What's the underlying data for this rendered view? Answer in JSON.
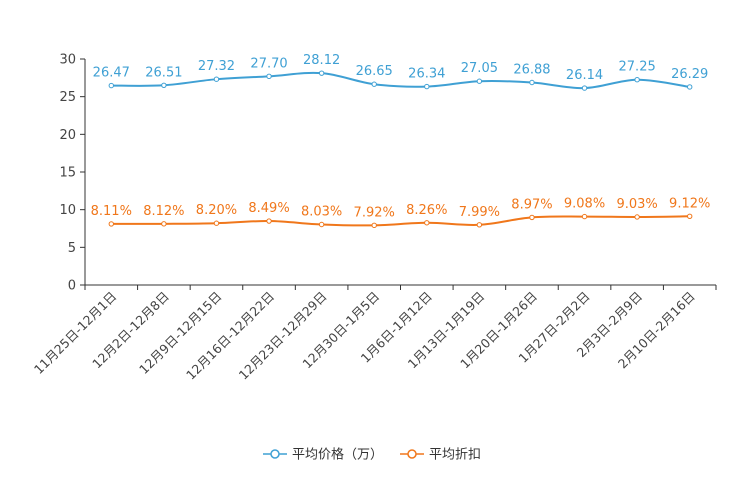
{
  "chart_data": {
    "type": "line",
    "categories": [
      "11月25日-12月1日",
      "12月2日-12月8日",
      "12月9日-12月15日",
      "12月16日-12月22日",
      "12月23日-12月29日",
      "12月30日-1月5日",
      "1月6日-1月12日",
      "1月13日-1月19日",
      "1月20日-1月26日",
      "1月27日-2月2日",
      "2月3日-2月9日",
      "2月10日-2月16日"
    ],
    "series": [
      {
        "name": "平均价格（万）",
        "color": "#3fa0d4",
        "values": [
          26.47,
          26.51,
          27.32,
          27.7,
          28.12,
          26.65,
          26.34,
          27.05,
          26.88,
          26.14,
          27.25,
          26.29
        ],
        "labels": [
          "26.47",
          "26.51",
          "27.32",
          "27.70",
          "28.12",
          "26.65",
          "26.34",
          "27.05",
          "26.88",
          "26.14",
          "27.25",
          "26.29"
        ]
      },
      {
        "name": "平均折扣",
        "color": "#f0771b",
        "values": [
          8.11,
          8.12,
          8.2,
          8.49,
          8.03,
          7.92,
          8.26,
          7.99,
          8.97,
          9.08,
          9.03,
          9.12
        ],
        "labels": [
          "8.11%",
          "8.12%",
          "8.20%",
          "8.49%",
          "8.03%",
          "7.92%",
          "8.26%",
          "7.99%",
          "8.97%",
          "9.08%",
          "9.03%",
          "9.12%"
        ]
      }
    ],
    "yticks": [
      "0",
      "5",
      "10",
      "15",
      "20",
      "25",
      "30"
    ],
    "ylim": [
      0,
      30
    ],
    "grid": false,
    "legend_position": "bottom-center",
    "title": "",
    "xlabel": "",
    "ylabel": ""
  }
}
